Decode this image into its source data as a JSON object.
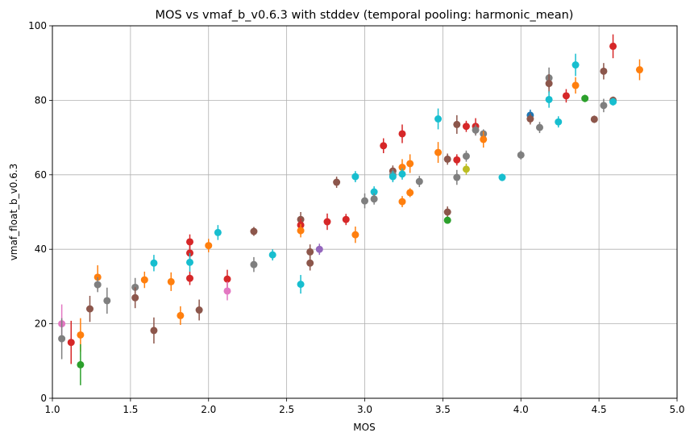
{
  "chart_data": {
    "type": "scatter",
    "title": "MOS vs vmaf_b_v0.6.3 with stddev (temporal pooling: harmonic_mean)",
    "xlabel": "MOS",
    "ylabel": "vmaf_float_b_v0.6.3",
    "xlim": [
      1.0,
      5.0
    ],
    "ylim": [
      0,
      100
    ],
    "xticks": [
      "1.0",
      "1.5",
      "2.0",
      "2.5",
      "3.0",
      "3.5",
      "4.0",
      "4.5",
      "5.0"
    ],
    "yticks": [
      "0",
      "20",
      "40",
      "60",
      "80",
      "100"
    ],
    "grid": true,
    "colors": {
      "blue": "#1f77b4",
      "orange": "#ff7f0e",
      "green": "#2ca02c",
      "red": "#d62728",
      "purple": "#9467bd",
      "brown": "#8c564b",
      "pink": "#e377c2",
      "gray": "#7f7f7f",
      "olive": "#bcbd22",
      "cyan": "#17becf"
    },
    "points": [
      {
        "x": 1.06,
        "y": 20.0,
        "err": 5.2,
        "color": "pink"
      },
      {
        "x": 1.06,
        "y": 16.0,
        "err": 5.5,
        "color": "gray"
      },
      {
        "x": 1.12,
        "y": 15.0,
        "err": 5.8,
        "color": "red"
      },
      {
        "x": 1.18,
        "y": 17.0,
        "err": 4.5,
        "color": "orange"
      },
      {
        "x": 1.18,
        "y": 9.0,
        "err": 5.5,
        "color": "green"
      },
      {
        "x": 1.24,
        "y": 24.0,
        "err": 3.5,
        "color": "brown"
      },
      {
        "x": 1.29,
        "y": 32.5,
        "err": 3.2,
        "color": "orange"
      },
      {
        "x": 1.29,
        "y": 30.5,
        "err": 2.0,
        "color": "gray"
      },
      {
        "x": 1.35,
        "y": 26.2,
        "err": 3.5,
        "color": "gray"
      },
      {
        "x": 1.53,
        "y": 29.8,
        "err": 2.5,
        "color": "gray"
      },
      {
        "x": 1.53,
        "y": 27.0,
        "err": 2.8,
        "color": "brown"
      },
      {
        "x": 1.59,
        "y": 31.8,
        "err": 2.2,
        "color": "orange"
      },
      {
        "x": 1.65,
        "y": 36.3,
        "err": 2.2,
        "color": "cyan"
      },
      {
        "x": 1.65,
        "y": 18.2,
        "err": 3.5,
        "color": "brown"
      },
      {
        "x": 1.76,
        "y": 31.3,
        "err": 2.5,
        "color": "orange"
      },
      {
        "x": 1.82,
        "y": 22.2,
        "err": 2.5,
        "color": "orange"
      },
      {
        "x": 1.88,
        "y": 42.0,
        "err": 2.0,
        "color": "red"
      },
      {
        "x": 1.88,
        "y": 39.0,
        "err": 2.0,
        "color": "red"
      },
      {
        "x": 1.88,
        "y": 36.5,
        "err": 2.5,
        "color": "cyan"
      },
      {
        "x": 1.88,
        "y": 32.2,
        "err": 1.8,
        "color": "red"
      },
      {
        "x": 1.94,
        "y": 23.7,
        "err": 2.8,
        "color": "brown"
      },
      {
        "x": 2.0,
        "y": 41.0,
        "err": 1.8,
        "color": "orange"
      },
      {
        "x": 2.06,
        "y": 44.5,
        "err": 2.0,
        "color": "cyan"
      },
      {
        "x": 2.12,
        "y": 32.0,
        "err": 2.5,
        "color": "red"
      },
      {
        "x": 2.12,
        "y": 28.8,
        "err": 2.5,
        "color": "pink"
      },
      {
        "x": 2.29,
        "y": 44.8,
        "err": 1.2,
        "color": "brown"
      },
      {
        "x": 2.29,
        "y": 35.9,
        "err": 2.0,
        "color": "gray"
      },
      {
        "x": 2.41,
        "y": 38.5,
        "err": 1.5,
        "color": "cyan"
      },
      {
        "x": 2.59,
        "y": 48.0,
        "err": 2.0,
        "color": "brown"
      },
      {
        "x": 2.59,
        "y": 46.5,
        "err": 1.8,
        "color": "red"
      },
      {
        "x": 2.59,
        "y": 45.0,
        "err": 1.8,
        "color": "orange"
      },
      {
        "x": 2.59,
        "y": 30.6,
        "err": 2.5,
        "color": "cyan"
      },
      {
        "x": 2.65,
        "y": 39.3,
        "err": 2.0,
        "color": "brown"
      },
      {
        "x": 2.65,
        "y": 36.3,
        "err": 2.0,
        "color": "brown"
      },
      {
        "x": 2.71,
        "y": 40.0,
        "err": 1.5,
        "color": "purple"
      },
      {
        "x": 2.76,
        "y": 47.4,
        "err": 2.2,
        "color": "red"
      },
      {
        "x": 2.82,
        "y": 58.0,
        "err": 1.5,
        "color": "brown"
      },
      {
        "x": 2.88,
        "y": 48.0,
        "err": 1.5,
        "color": "red"
      },
      {
        "x": 2.94,
        "y": 59.5,
        "err": 1.5,
        "color": "cyan"
      },
      {
        "x": 2.94,
        "y": 43.9,
        "err": 2.2,
        "color": "orange"
      },
      {
        "x": 3.0,
        "y": 53.0,
        "err": 2.0,
        "color": "gray"
      },
      {
        "x": 3.06,
        "y": 55.4,
        "err": 1.5,
        "color": "cyan"
      },
      {
        "x": 3.06,
        "y": 53.5,
        "err": 1.5,
        "color": "gray"
      },
      {
        "x": 3.12,
        "y": 67.8,
        "err": 2.0,
        "color": "red"
      },
      {
        "x": 3.18,
        "y": 61.0,
        "err": 1.5,
        "color": "brown"
      },
      {
        "x": 3.18,
        "y": 60.0,
        "err": 1.5,
        "color": "gray"
      },
      {
        "x": 3.18,
        "y": 59.5,
        "err": 1.5,
        "color": "cyan"
      },
      {
        "x": 3.24,
        "y": 71.0,
        "err": 2.5,
        "color": "red"
      },
      {
        "x": 3.24,
        "y": 62.0,
        "err": 2.2,
        "color": "orange"
      },
      {
        "x": 3.24,
        "y": 60.2,
        "err": 1.5,
        "color": "cyan"
      },
      {
        "x": 3.24,
        "y": 52.8,
        "err": 1.5,
        "color": "orange"
      },
      {
        "x": 3.29,
        "y": 63.0,
        "err": 2.5,
        "color": "orange"
      },
      {
        "x": 3.29,
        "y": 55.2,
        "err": 1.2,
        "color": "orange"
      },
      {
        "x": 3.35,
        "y": 58.2,
        "err": 1.5,
        "color": "gray"
      },
      {
        "x": 3.47,
        "y": 75.0,
        "err": 2.8,
        "color": "cyan"
      },
      {
        "x": 3.47,
        "y": 66.0,
        "err": 2.8,
        "color": "orange"
      },
      {
        "x": 3.53,
        "y": 64.2,
        "err": 1.5,
        "color": "brown"
      },
      {
        "x": 3.53,
        "y": 50.0,
        "err": 1.5,
        "color": "brown"
      },
      {
        "x": 3.53,
        "y": 47.8,
        "err": 0.8,
        "color": "green"
      },
      {
        "x": 3.59,
        "y": 73.5,
        "err": 2.5,
        "color": "brown"
      },
      {
        "x": 3.59,
        "y": 64.0,
        "err": 1.5,
        "color": "red"
      },
      {
        "x": 3.59,
        "y": 59.3,
        "err": 2.0,
        "color": "gray"
      },
      {
        "x": 3.65,
        "y": 73.0,
        "err": 1.5,
        "color": "red"
      },
      {
        "x": 3.65,
        "y": 65.0,
        "err": 1.5,
        "color": "gray"
      },
      {
        "x": 3.65,
        "y": 61.5,
        "err": 1.5,
        "color": "olive"
      },
      {
        "x": 3.71,
        "y": 73.0,
        "err": 2.2,
        "color": "red"
      },
      {
        "x": 3.71,
        "y": 72.0,
        "err": 1.5,
        "color": "gray"
      },
      {
        "x": 3.76,
        "y": 71.0,
        "err": 1.2,
        "color": "gray"
      },
      {
        "x": 3.76,
        "y": 69.5,
        "err": 2.2,
        "color": "orange"
      },
      {
        "x": 3.88,
        "y": 59.3,
        "err": 1.0,
        "color": "cyan"
      },
      {
        "x": 4.0,
        "y": 65.3,
        "err": 1.2,
        "color": "gray"
      },
      {
        "x": 4.06,
        "y": 76.0,
        "err": 1.5,
        "color": "blue"
      },
      {
        "x": 4.06,
        "y": 75.0,
        "err": 1.5,
        "color": "brown"
      },
      {
        "x": 4.12,
        "y": 72.7,
        "err": 1.5,
        "color": "gray"
      },
      {
        "x": 4.18,
        "y": 86.0,
        "err": 2.8,
        "color": "gray"
      },
      {
        "x": 4.18,
        "y": 84.5,
        "err": 2.5,
        "color": "brown"
      },
      {
        "x": 4.18,
        "y": 80.2,
        "err": 2.2,
        "color": "cyan"
      },
      {
        "x": 4.24,
        "y": 74.2,
        "err": 1.5,
        "color": "cyan"
      },
      {
        "x": 4.29,
        "y": 81.2,
        "err": 1.8,
        "color": "red"
      },
      {
        "x": 4.35,
        "y": 89.5,
        "err": 3.0,
        "color": "cyan"
      },
      {
        "x": 4.35,
        "y": 84.0,
        "err": 2.2,
        "color": "orange"
      },
      {
        "x": 4.41,
        "y": 80.5,
        "err": 1.0,
        "color": "green"
      },
      {
        "x": 4.47,
        "y": 74.9,
        "err": 1.0,
        "color": "brown"
      },
      {
        "x": 4.53,
        "y": 87.8,
        "err": 2.2,
        "color": "brown"
      },
      {
        "x": 4.53,
        "y": 78.6,
        "err": 1.8,
        "color": "gray"
      },
      {
        "x": 4.59,
        "y": 94.5,
        "err": 3.2,
        "color": "red"
      },
      {
        "x": 4.59,
        "y": 80.0,
        "err": 1.0,
        "color": "brown"
      },
      {
        "x": 4.59,
        "y": 79.6,
        "err": 1.0,
        "color": "cyan"
      },
      {
        "x": 4.76,
        "y": 88.2,
        "err": 2.8,
        "color": "orange"
      }
    ]
  }
}
